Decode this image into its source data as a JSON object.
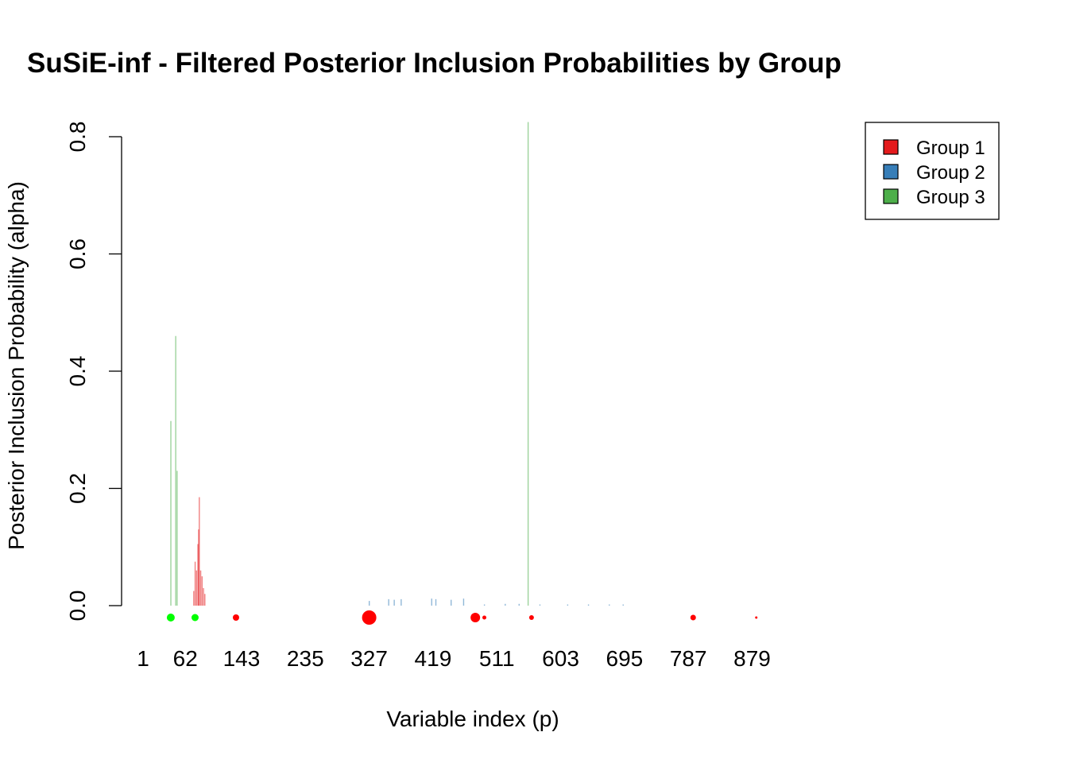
{
  "chart_data": {
    "type": "bar",
    "title": "SuSiE-inf - Filtered Posterior Inclusion Probabilities by Group",
    "xlabel": "Variable index (p)",
    "ylabel": "Posterior Inclusion Probability (alpha)",
    "ylim": [
      0,
      0.8
    ],
    "y_ticks": [
      "0.0",
      "0.2",
      "0.4",
      "0.6",
      "0.8"
    ],
    "x_tick_labels": [
      "1",
      "62",
      "143",
      "235",
      "327",
      "419",
      "511",
      "603",
      "695",
      "787",
      "879"
    ],
    "grid": false,
    "legend_position": "top-right",
    "legend": [
      {
        "label": "Group 1",
        "color": "#E41A1C"
      },
      {
        "label": "Group 2",
        "color": "#377EB8"
      },
      {
        "label": "Group 3",
        "color": "#4DAF4A"
      }
    ],
    "series": [
      {
        "name": "Group 1",
        "color": "#E41A1C",
        "x": [
          74,
          76,
          78,
          80,
          81,
          82,
          84,
          86,
          88,
          90
        ],
        "values": [
          0.025,
          0.075,
          0.06,
          0.105,
          0.13,
          0.185,
          0.06,
          0.05,
          0.03,
          0.02
        ]
      },
      {
        "name": "Group 2",
        "color": "#377EB8",
        "x": [
          327,
          355,
          363,
          373,
          417,
          423,
          445,
          463,
          493,
          523,
          543,
          573,
          613,
          643,
          673,
          693
        ],
        "values": [
          0.008,
          0.011,
          0.01,
          0.011,
          0.012,
          0.011,
          0.01,
          0.012,
          0.002,
          0.003,
          0.003,
          0.002,
          0.002,
          0.002,
          0.002,
          0.002
        ]
      },
      {
        "name": "Group 3",
        "color": "#4DAF4A",
        "x": [
          41,
          48,
          50,
          556
        ],
        "values": [
          0.315,
          0.46,
          0.23,
          0.825
        ]
      }
    ],
    "points": [
      {
        "x": 41,
        "color": "#00FF00",
        "size": 5
      },
      {
        "x": 76,
        "color": "#00FF00",
        "size": 4.5
      },
      {
        "x": 135,
        "color": "#FF0000",
        "size": 4
      },
      {
        "x": 327,
        "color": "#FF0000",
        "size": 9
      },
      {
        "x": 480,
        "color": "#FF0000",
        "size": 6
      },
      {
        "x": 493,
        "color": "#FF0000",
        "size": 2.5
      },
      {
        "x": 561,
        "color": "#FF0000",
        "size": 3
      },
      {
        "x": 794,
        "color": "#FF0000",
        "size": 3.5
      },
      {
        "x": 885,
        "color": "#FF0000",
        "size": 1.5
      }
    ]
  }
}
